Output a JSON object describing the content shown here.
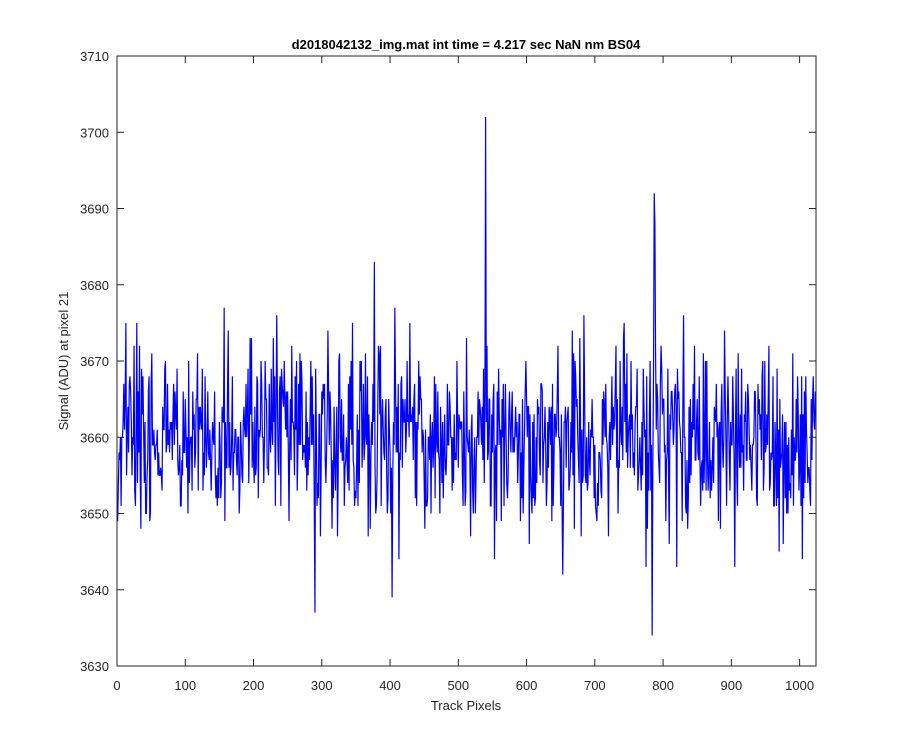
{
  "figure": {
    "background": "#ffffff"
  },
  "chart_data": {
    "type": "line",
    "title": "d2018042132_img.mat int time = 4.217 sec  NaN nm BS04",
    "xlabel": "Track Pixels",
    "ylabel": "Signal (ADU) at pixel 21",
    "xlim": [
      0,
      1024
    ],
    "ylim": [
      3630,
      3710
    ],
    "xticks": [
      0,
      100,
      200,
      300,
      400,
      500,
      600,
      700,
      800,
      900,
      1000
    ],
    "yticks": [
      3630,
      3640,
      3650,
      3660,
      3670,
      3680,
      3690,
      3700,
      3710
    ],
    "grid": false,
    "line_color": "#0000ff",
    "axis_color": "#262626",
    "n_points": 1024,
    "signal_mean": 3660,
    "signal_noise_range": [
      3642,
      3680
    ],
    "peaks": [
      {
        "x": 290,
        "y": 3637
      },
      {
        "x": 377,
        "y": 3683
      },
      {
        "x": 403,
        "y": 3639
      },
      {
        "x": 540,
        "y": 3702
      },
      {
        "x": 784,
        "y": 3634
      },
      {
        "x": 787,
        "y": 3692
      },
      {
        "x": 788,
        "y": 3688
      }
    ]
  }
}
